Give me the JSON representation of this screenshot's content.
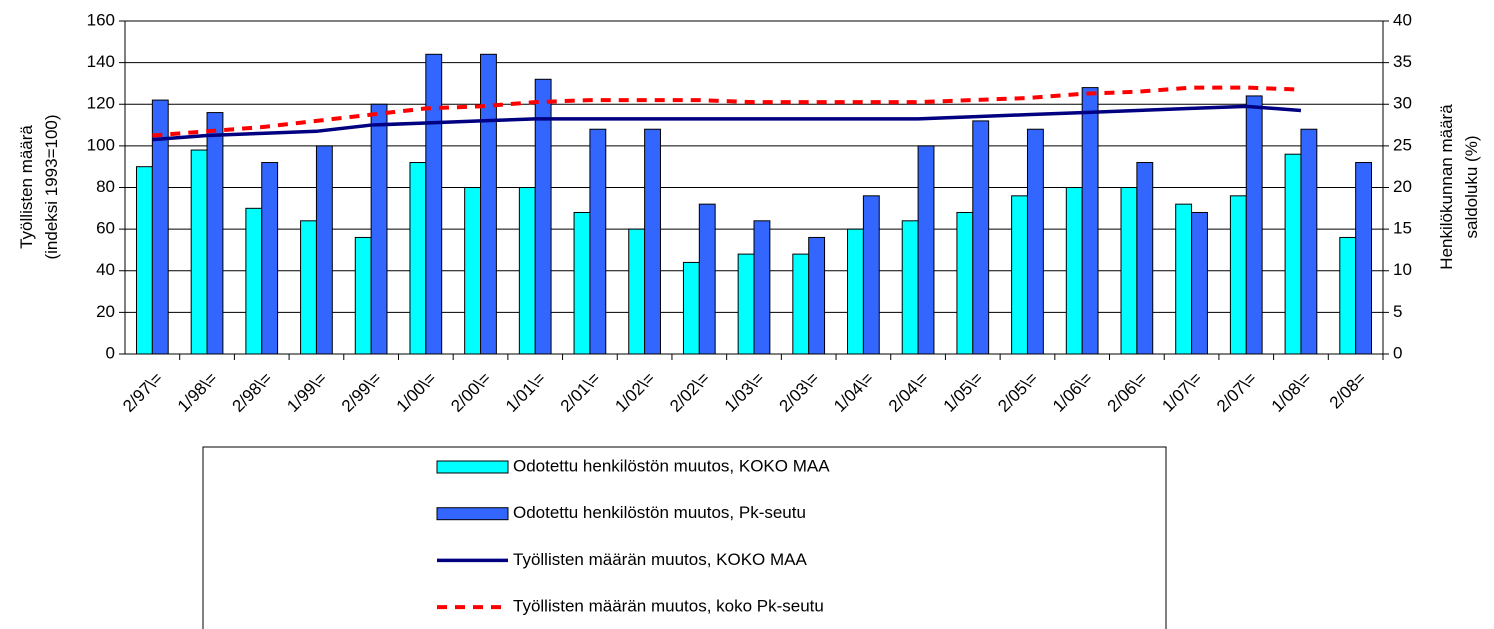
{
  "chart_data": {
    "type": "bar",
    "categories": [
      "2/97\\=",
      "1/98\\=",
      "2/98\\=",
      "1/99\\=",
      "2/99\\=",
      "1/00\\=",
      "2/00\\=",
      "1/01\\=",
      "2/01\\=",
      "1/02\\=",
      "2/02\\=",
      "1/03\\=",
      "2/03\\=",
      "1/04\\=",
      "2/04\\=",
      "1/05\\=",
      "2/05\\=",
      "1/06\\=",
      "2/06\\=",
      "1/07\\=",
      "2/07\\=",
      "1/08\\=",
      "2/08="
    ],
    "y_label": [
      "Työllisten määrä",
      "(indeksi 1993=100)"
    ],
    "y2_label": [
      "Henkilökunnan määrä",
      "saldoluku (%)"
    ],
    "ylim": [
      0,
      160
    ],
    "yticks": [
      0,
      20,
      40,
      60,
      80,
      100,
      120,
      140,
      160
    ],
    "y2lim": [
      0,
      40
    ],
    "y2ticks": [
      0,
      5,
      10,
      15,
      20,
      25,
      30,
      35,
      40
    ],
    "series": [
      {
        "name": "Odotettu henkilöstön muutos, KOKO MAA",
        "type": "bar",
        "axis": "y2",
        "color": "#00ffff",
        "values": [
          22.5,
          24.5,
          17.5,
          16,
          14,
          23,
          20,
          20,
          17,
          15,
          11,
          12,
          12,
          15,
          16,
          17,
          19,
          20,
          20,
          18,
          19,
          24,
          14
        ]
      },
      {
        "name": "Odotettu henkilöstön muutos, Pk-seutu",
        "type": "bar",
        "axis": "y2",
        "color": "#3366ff",
        "values": [
          30.5,
          29,
          23,
          25,
          30,
          36,
          36,
          33,
          27,
          27,
          18,
          16,
          14,
          19,
          25,
          28,
          27,
          32,
          23,
          17,
          31,
          27,
          23
        ]
      },
      {
        "name": "Työllisten määrän muutos, KOKO MAA",
        "type": "line",
        "color": "#000080",
        "values": [
          103,
          105,
          106,
          107,
          110,
          111,
          112,
          113,
          113,
          113,
          113,
          113,
          113,
          113,
          113,
          114,
          115,
          116,
          117,
          118,
          119,
          117,
          null
        ]
      },
      {
        "name": "Työllisten määrän muutos, koko Pk-seutu",
        "type": "line",
        "dashed": true,
        "color": "#ff0000",
        "values": [
          105,
          107,
          109,
          112,
          115,
          118,
          119,
          121,
          122,
          122,
          122,
          121,
          121,
          121,
          121,
          122,
          123,
          125,
          126,
          128,
          128,
          127,
          null
        ]
      }
    ]
  }
}
